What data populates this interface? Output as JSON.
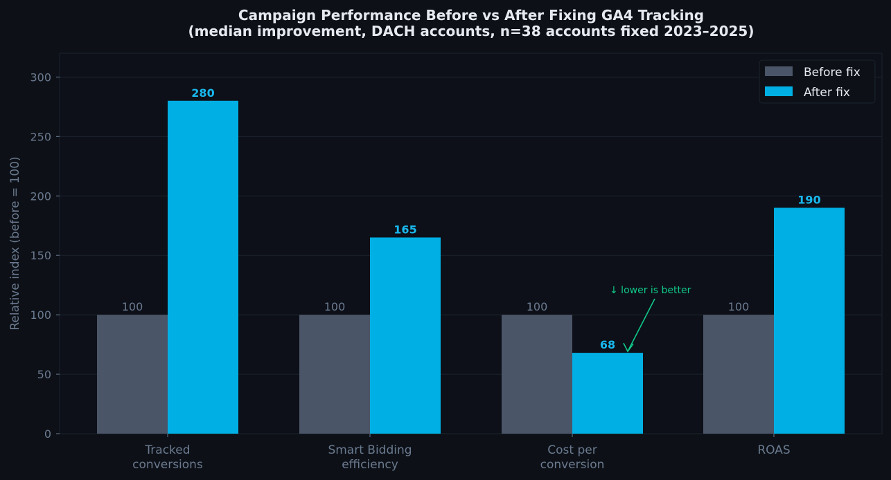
{
  "chart_data": {
    "type": "bar",
    "title": "Campaign Performance Before vs After Fixing GA4 Tracking",
    "subtitle": "(median improvement, DACH accounts, n=38 accounts fixed 2023–2025)",
    "xlabel": "",
    "ylabel": "Relative index (before = 100)",
    "ylim": [
      0,
      320
    ],
    "yticks": [
      0,
      50,
      100,
      150,
      200,
      250,
      300
    ],
    "grid": true,
    "legend_position": "top-right",
    "categories": [
      [
        "Tracked",
        "conversions"
      ],
      [
        "Smart Bidding",
        "efficiency"
      ],
      [
        "Cost per",
        "conversion"
      ],
      [
        "ROAS"
      ]
    ],
    "series": [
      {
        "name": "Before fix",
        "values": [
          100,
          100,
          100,
          100
        ],
        "color": "#4a5568"
      },
      {
        "name": "After fix",
        "values": [
          280,
          165,
          68,
          190
        ],
        "color": "#00b0e4"
      }
    ],
    "annotation": {
      "text": "↓ lower is better",
      "category_index": 2,
      "color": "#10c98a"
    },
    "colors": {
      "background": "#0d1117",
      "grid": "#1c232e",
      "axis_text": "#6b7a90",
      "title": "#e6e9ef"
    }
  }
}
